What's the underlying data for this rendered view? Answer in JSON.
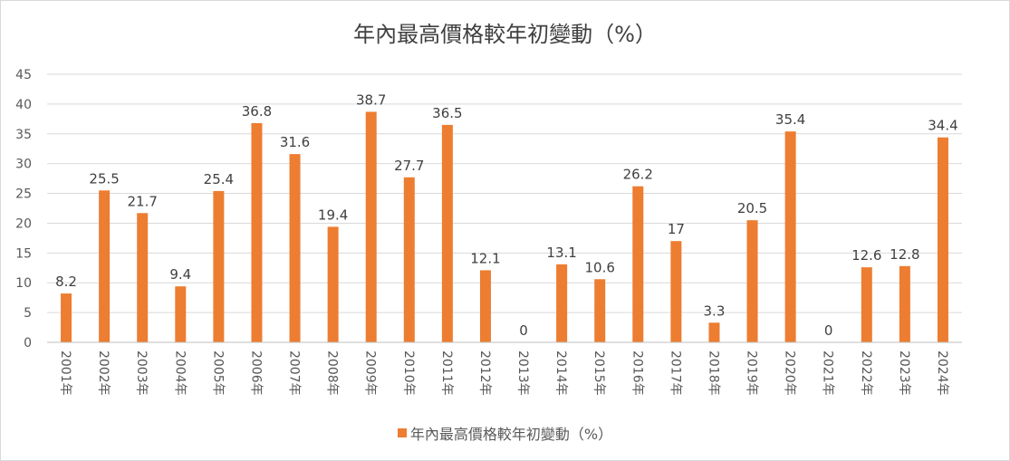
{
  "chart_data": {
    "type": "bar",
    "title": "年內最高價格較年初變動（%）",
    "categories": [
      "2001年",
      "2002年",
      "2003年",
      "2004年",
      "2005年",
      "2006年",
      "2007年",
      "2008年",
      "2009年",
      "2010年",
      "2011年",
      "2012年",
      "2013年",
      "2014年",
      "2015年",
      "2016年",
      "2017年",
      "2018年",
      "2019年",
      "2020年",
      "2021年",
      "2022年",
      "2023年",
      "2024年"
    ],
    "series": [
      {
        "name": "年內最高價格較年初變動（%）",
        "values": [
          8.2,
          25.5,
          21.7,
          9.4,
          25.4,
          36.8,
          31.6,
          19.4,
          38.7,
          27.7,
          36.5,
          12.1,
          0,
          13.1,
          10.6,
          26.2,
          17,
          3.3,
          20.5,
          35.4,
          0,
          12.6,
          12.8,
          34.4
        ],
        "data_labels": [
          "8.2",
          "25.5",
          "21.7",
          "9.4",
          "25.4",
          "36.8",
          "31.6",
          "19.4",
          "38.7",
          "27.7",
          "36.5",
          "12.1",
          "0",
          "13.1",
          "10.6",
          "26.2",
          "17",
          "3.3",
          "20.5",
          "35.4",
          "0",
          "12.6",
          "12.8",
          "34.4"
        ],
        "color": "#ed7d31"
      }
    ],
    "ylim": [
      0,
      45
    ],
    "yticks": [
      "0",
      "5",
      "10",
      "15",
      "20",
      "25",
      "30",
      "35",
      "40",
      "45"
    ],
    "grid": true,
    "legend_position": "bottom",
    "gridline_color": "#d9d9d9"
  }
}
